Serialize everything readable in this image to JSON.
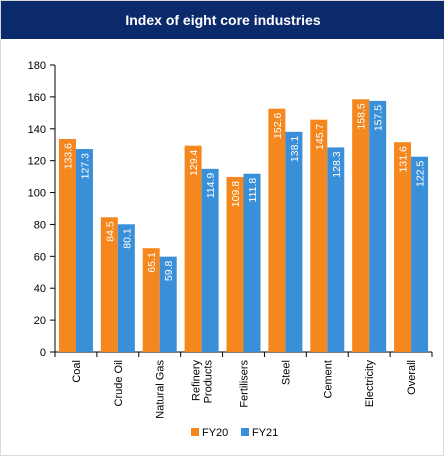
{
  "chart_data": {
    "type": "bar",
    "title": "Index of eight core industries",
    "categories": [
      [
        "Coal"
      ],
      [
        "Crude Oil"
      ],
      [
        "Natural Gas"
      ],
      [
        "Refinery",
        "Products"
      ],
      [
        "Fertilisers"
      ],
      [
        "Steel"
      ],
      [
        "Cement"
      ],
      [
        "Electricity"
      ],
      [
        "Overall"
      ]
    ],
    "series": [
      {
        "name": "FY20",
        "color": "#f5871f",
        "values": [
          133.6,
          84.5,
          65.1,
          129.4,
          109.8,
          152.6,
          145.7,
          158.5,
          131.6
        ]
      },
      {
        "name": "FY21",
        "color": "#3a8fd9",
        "values": [
          127.3,
          80.1,
          59.8,
          114.9,
          111.8,
          138.1,
          128.3,
          157.5,
          122.5
        ]
      }
    ],
    "ylim": [
      0,
      180
    ],
    "yticks": [
      0,
      20,
      40,
      60,
      80,
      100,
      120,
      140,
      160,
      180
    ],
    "grid": false,
    "legend": "bottom"
  }
}
